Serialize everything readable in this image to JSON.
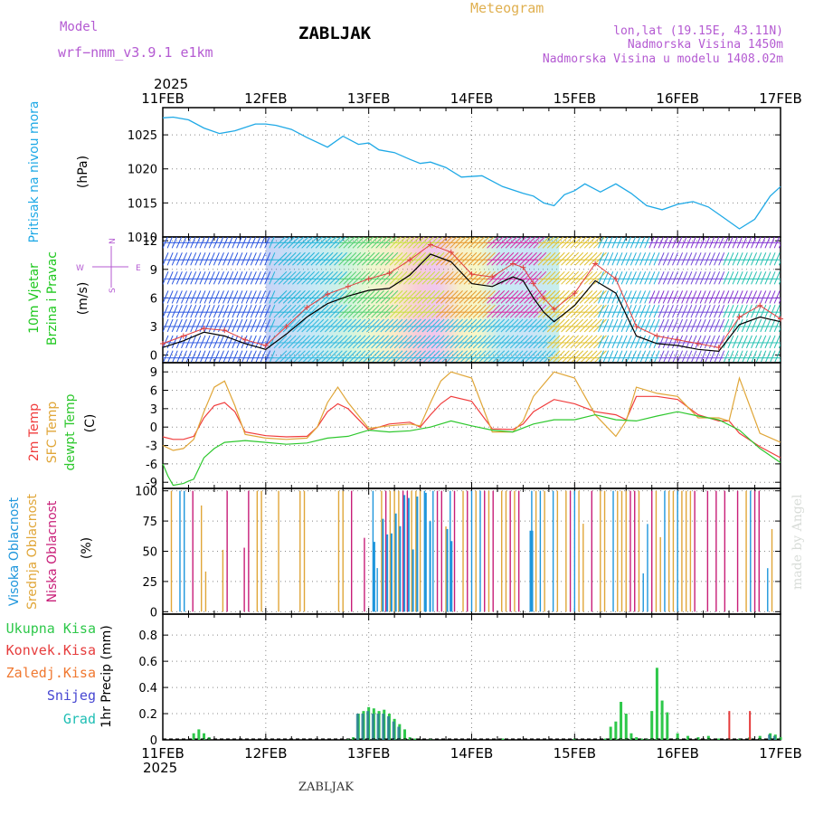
{
  "header": {
    "model_label": "Model",
    "model_name": "wrf−nmm_v3.9.1  e1km",
    "station": "ZABLJAK",
    "product": "Meteogram",
    "lonlat": "lon,lat (19.15E, 43.11N)",
    "altitude": "Nadmorska Visina 1450m",
    "model_altitude": "Nadmorska Visina u modelu 1408.02m",
    "year": "2025",
    "footer_station": "ZABLJAK",
    "credit": "made by Angel"
  },
  "colors": {
    "pressure": "#1fa9e6",
    "temp2m": "#f03c3c",
    "sfc_temp": "#e0a638",
    "dewpoint": "#2ec82e",
    "high_cloud": "#1e96dc",
    "mid_cloud": "#e0a638",
    "low_cloud": "#c81e78",
    "precip_total": "#2ec84a",
    "precip_conv": "#e63c3c",
    "precip_frz": "#f07830",
    "precip_snow": "#4646d2",
    "precip_hail": "#1ebeb4"
  },
  "chart_data": [
    {
      "type": "line",
      "name": "pressure",
      "ylabels": [
        "Pritisak na nivou mora",
        "(hPa)"
      ],
      "x_ticks": [
        "11FEB",
        "12FEB",
        "13FEB",
        "14FEB",
        "15FEB",
        "16FEB",
        "17FEB"
      ],
      "yticks": [
        1010,
        1015,
        1020,
        1025
      ],
      "ylim": [
        1010,
        1029
      ],
      "grid": true,
      "series": [
        {
          "color": "#1fa9e6",
          "x": [
            0,
            0.1,
            0.25,
            0.4,
            0.55,
            0.7,
            0.9,
            1.0,
            1.1,
            1.25,
            1.4,
            1.6,
            1.75,
            1.9,
            2.0,
            2.1,
            2.25,
            2.4,
            2.5,
            2.6,
            2.75,
            2.9,
            3.1,
            3.3,
            3.5,
            3.6,
            3.7,
            3.8,
            3.9,
            4.0,
            4.1,
            4.25,
            4.4,
            4.55,
            4.7,
            4.85,
            5.0,
            5.15,
            5.3,
            5.45,
            5.6,
            5.75,
            5.9,
            6.0
          ],
          "y": [
            1027.5,
            1027.6,
            1027.2,
            1026.0,
            1025.2,
            1025.6,
            1026.6,
            1026.6,
            1026.4,
            1025.8,
            1024.6,
            1023.2,
            1024.8,
            1023.6,
            1023.8,
            1022.8,
            1022.4,
            1021.4,
            1020.8,
            1021.0,
            1020.2,
            1018.8,
            1019.0,
            1017.4,
            1016.4,
            1016.0,
            1015.0,
            1014.6,
            1016.2,
            1016.8,
            1017.8,
            1016.6,
            1017.8,
            1016.4,
            1014.6,
            1014.0,
            1014.8,
            1015.2,
            1014.4,
            1012.8,
            1011.2,
            1012.6,
            1016.0,
            1017.4
          ]
        }
      ]
    },
    {
      "type": "line",
      "name": "wind",
      "ylabels": [
        "10m Vjetar",
        "Brzina i Pravac",
        "(m/s)"
      ],
      "compass": [
        "W",
        "E",
        "S",
        "N"
      ],
      "yticks": [
        0,
        3,
        6,
        9,
        12
      ],
      "ylim": [
        -0.8,
        12.4
      ],
      "grid": true,
      "series": [
        {
          "name": "speed",
          "color": "#000000",
          "x": [
            0,
            0.2,
            0.4,
            0.6,
            0.8,
            1.0,
            1.2,
            1.4,
            1.6,
            1.8,
            2.0,
            2.2,
            2.4,
            2.6,
            2.8,
            3.0,
            3.2,
            3.4,
            3.5,
            3.6,
            3.7,
            3.8,
            4.0,
            4.2,
            4.4,
            4.6,
            4.8,
            5.0,
            5.2,
            5.4,
            5.6,
            5.8,
            6.0
          ],
          "y": [
            0.8,
            1.5,
            2.4,
            2.0,
            1.2,
            0.6,
            2.2,
            4.0,
            5.4,
            6.2,
            6.8,
            7.0,
            8.4,
            10.6,
            9.8,
            7.5,
            7.2,
            8.2,
            7.8,
            6.0,
            4.5,
            3.5,
            5.2,
            7.8,
            6.5,
            2.0,
            1.2,
            1.0,
            0.6,
            0.4,
            3.2,
            4.0,
            3.5
          ]
        },
        {
          "name": "gust",
          "color": "#e04040",
          "x": [
            0,
            0.2,
            0.4,
            0.6,
            0.8,
            1.0,
            1.2,
            1.4,
            1.6,
            1.8,
            2.0,
            2.2,
            2.4,
            2.6,
            2.8,
            3.0,
            3.2,
            3.4,
            3.5,
            3.6,
            3.7,
            3.8,
            4.0,
            4.2,
            4.4,
            4.6,
            4.8,
            5.0,
            5.2,
            5.4,
            5.6,
            5.8,
            6.0
          ],
          "y": [
            1.2,
            2.0,
            2.8,
            2.6,
            1.6,
            1.0,
            3.0,
            5.0,
            6.4,
            7.2,
            8.0,
            8.6,
            10.0,
            11.6,
            10.8,
            8.5,
            8.2,
            9.6,
            9.2,
            7.5,
            6.0,
            4.8,
            6.5,
            9.6,
            8.0,
            3.0,
            2.0,
            1.6,
            1.2,
            0.8,
            4.0,
            5.2,
            3.8
          ]
        }
      ]
    },
    {
      "type": "line",
      "name": "temperature",
      "ylabels": [
        "2m Temp",
        "SFC Temp",
        "dewpt Temp",
        "(C)"
      ],
      "yticks": [
        -9,
        -6,
        -3,
        0,
        3,
        6,
        9
      ],
      "ylim": [
        -10,
        10.5
      ],
      "grid": true,
      "series": [
        {
          "name": "2m Temp",
          "color": "#f03c3c",
          "x": [
            0,
            0.1,
            0.2,
            0.3,
            0.4,
            0.5,
            0.6,
            0.7,
            0.8,
            1.0,
            1.2,
            1.4,
            1.5,
            1.6,
            1.7,
            1.8,
            2.0,
            2.2,
            2.4,
            2.5,
            2.6,
            2.7,
            2.8,
            3.0,
            3.2,
            3.4,
            3.5,
            3.6,
            3.8,
            4.0,
            4.2,
            4.4,
            4.5,
            4.6,
            4.8,
            5.0,
            5.2,
            5.4,
            5.5,
            5.6,
            5.8,
            6.0
          ],
          "y": [
            -1.6,
            -2.0,
            -2.0,
            -1.5,
            1.5,
            3.5,
            4.0,
            2.5,
            -0.8,
            -1.4,
            -1.6,
            -1.5,
            0,
            2.5,
            3.8,
            3.0,
            -0.5,
            0.5,
            0.8,
            0,
            2.0,
            3.8,
            5.0,
            4.2,
            -0.3,
            -0.4,
            0.5,
            2.5,
            4.5,
            3.8,
            2.5,
            2.0,
            1.2,
            5.0,
            5.0,
            4.5,
            2.0,
            1.0,
            1.0,
            -1.0,
            -3.2,
            -5.0
          ]
        },
        {
          "name": "SFC Temp",
          "color": "#e0a638",
          "x": [
            0,
            0.1,
            0.2,
            0.3,
            0.4,
            0.5,
            0.6,
            0.7,
            0.8,
            1.0,
            1.2,
            1.4,
            1.5,
            1.6,
            1.7,
            1.8,
            2.0,
            2.2,
            2.4,
            2.5,
            2.6,
            2.7,
            2.8,
            3.0,
            3.2,
            3.4,
            3.5,
            3.6,
            3.8,
            4.0,
            4.2,
            4.4,
            4.5,
            4.6,
            4.8,
            5.0,
            5.2,
            5.4,
            5.5,
            5.6,
            5.8,
            6.0
          ],
          "y": [
            -3.0,
            -3.8,
            -3.5,
            -2.0,
            2.5,
            6.5,
            7.5,
            3.5,
            -1.2,
            -1.8,
            -2.0,
            -1.8,
            0,
            4.0,
            6.5,
            4.0,
            -0.2,
            0.2,
            0.5,
            0.2,
            4.0,
            7.5,
            9.0,
            8.0,
            -0.8,
            -0.8,
            1.0,
            5.0,
            9.0,
            8.0,
            2.0,
            -1.5,
            1.0,
            6.5,
            5.5,
            5.0,
            1.5,
            1.5,
            1.0,
            8.0,
            -1.0,
            -2.5
          ]
        },
        {
          "name": "dewpt Temp",
          "color": "#2ec82e",
          "x": [
            0,
            0.05,
            0.1,
            0.2,
            0.25,
            0.3,
            0.4,
            0.5,
            0.6,
            0.8,
            1.0,
            1.2,
            1.4,
            1.6,
            1.8,
            2.0,
            2.2,
            2.4,
            2.6,
            2.8,
            3.0,
            3.2,
            3.4,
            3.6,
            3.8,
            4.0,
            4.2,
            4.4,
            4.6,
            4.8,
            5.0,
            5.2,
            5.4,
            5.6,
            5.8,
            6.0
          ],
          "y": [
            -6.0,
            -8.0,
            -9.5,
            -9.2,
            -8.8,
            -8.5,
            -5.0,
            -3.5,
            -2.5,
            -2.2,
            -2.5,
            -2.8,
            -2.6,
            -1.8,
            -1.5,
            -0.5,
            -0.8,
            -0.6,
            0,
            1.0,
            0.2,
            -0.5,
            -0.8,
            0.5,
            1.2,
            1.2,
            2.0,
            1.2,
            1.0,
            1.8,
            2.5,
            1.8,
            1.2,
            -0.5,
            -3.5,
            -5.8
          ]
        }
      ]
    },
    {
      "type": "bar",
      "name": "clouds",
      "ylabels": [
        "Visoka Oblacnost",
        "Srednja Oblacnost",
        "Niska Oblacnost",
        "(%)"
      ],
      "yticks": [
        0,
        25,
        50,
        75,
        100
      ],
      "ylim": [
        -2,
        102
      ],
      "grid": true,
      "series": [
        {
          "name": "Visoka Oblacnost",
          "color": "#1e96dc",
          "values_note": "hourly high cloud %"
        },
        {
          "name": "Srednja Oblacnost",
          "color": "#e0a638",
          "values_note": "hourly mid cloud %"
        },
        {
          "name": "Niska Oblacnost",
          "color": "#c81e78",
          "values_note": "hourly low cloud %"
        }
      ]
    },
    {
      "type": "bar",
      "name": "precip",
      "ylabels": [
        "1hr Precip (mm)"
      ],
      "legend": [
        "Ukupna Kisa",
        "Konvek.Kisa",
        "Zaledj.Kisa",
        "Snijeg",
        "Grad"
      ],
      "yticks": [
        0,
        0.2,
        0.4,
        0.6,
        0.8
      ],
      "ylim": [
        0,
        0.96
      ],
      "grid": true,
      "x": [
        0.3,
        0.35,
        0.4,
        0.45,
        1.8,
        1.85,
        1.9,
        1.95,
        2.0,
        2.05,
        2.1,
        2.15,
        2.2,
        2.25,
        2.3,
        2.35,
        2.4,
        2.45,
        2.6,
        3.3,
        4.0,
        4.3,
        4.35,
        4.4,
        4.45,
        4.5,
        4.55,
        4.6,
        4.65,
        4.7,
        4.75,
        4.8,
        4.85,
        4.9,
        5.0,
        5.1,
        5.2,
        5.3,
        5.4,
        5.5,
        5.6,
        5.7,
        5.8,
        5.9,
        5.95,
        6.0
      ],
      "series": [
        {
          "name": "Ukupna Kisa",
          "color": "#2ec84a",
          "values": [
            0.05,
            0.08,
            0.05,
            0.02,
            0.01,
            0.02,
            0.2,
            0.22,
            0.25,
            0.24,
            0.22,
            0.23,
            0.2,
            0.16,
            0.12,
            0.08,
            0.02,
            0.01,
            0.01,
            0.01,
            0.01,
            0.01,
            0.1,
            0.14,
            0.29,
            0.2,
            0.05,
            0.02,
            0.01,
            0.01,
            0.22,
            0.55,
            0.3,
            0.21,
            0.05,
            0.03,
            0.02,
            0.03,
            0.01,
            0.01,
            0.01,
            0.02,
            0.03,
            0.05,
            0.04,
            0.02
          ]
        },
        {
          "name": "Snijeg",
          "color": "#4646d2",
          "values": [
            0,
            0,
            0,
            0,
            0,
            0,
            0.2,
            0.2,
            0.22,
            0.2,
            0.2,
            0.2,
            0.18,
            0.14,
            0.1,
            0,
            0,
            0,
            0,
            0,
            0,
            0,
            0,
            0,
            0,
            0,
            0,
            0,
            0,
            0,
            0,
            0,
            0,
            0,
            0,
            0,
            0,
            0,
            0,
            0,
            0,
            0,
            0,
            0.04,
            0.03,
            0
          ]
        }
      ]
    }
  ]
}
